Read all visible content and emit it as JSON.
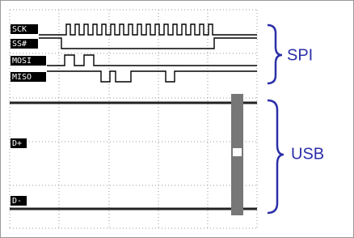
{
  "signals": {
    "spi": [
      "SCK",
      "SS#",
      "MOSI",
      "MISO"
    ],
    "usb": [
      "D+",
      "D-"
    ]
  },
  "groups": {
    "spi": "SPI",
    "usb": "USB"
  }
}
